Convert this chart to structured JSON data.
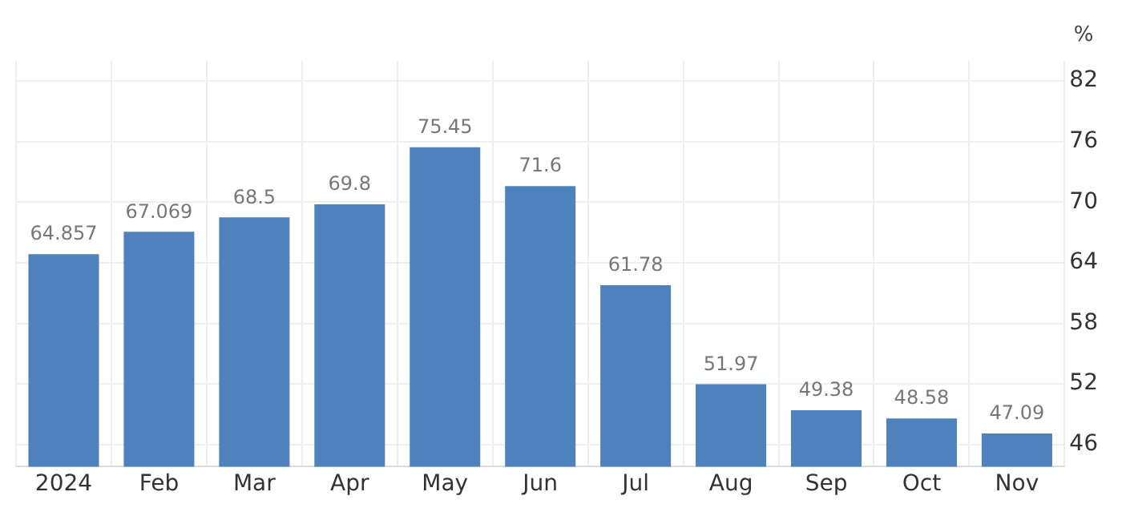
{
  "chart_data": {
    "type": "bar",
    "ylabel": "%",
    "categories": [
      "2024",
      "Feb",
      "Mar",
      "Apr",
      "May",
      "Jun",
      "Jul",
      "Aug",
      "Sep",
      "Oct",
      "Nov"
    ],
    "values": [
      64.857,
      67.069,
      68.5,
      69.8,
      75.45,
      71.6,
      61.78,
      51.97,
      49.38,
      48.58,
      47.09
    ],
    "color": "#4f81bd",
    "ylim": [
      43.8,
      84
    ],
    "yticks": [
      46,
      52,
      58,
      64,
      70,
      76,
      82
    ],
    "grid": true,
    "data_labels": true,
    "legend": false
  }
}
